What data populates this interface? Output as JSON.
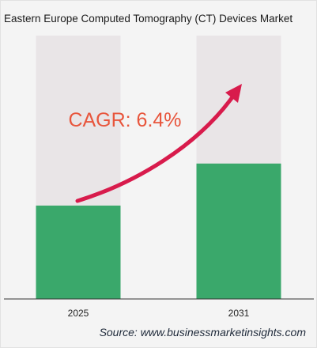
{
  "title": "Eastern Europe Computed Tomography (CT) Devices Market",
  "source": "Source: www.businessmarketinsights.com",
  "colors": {
    "bar": "#3aa86b",
    "bar_track": "#e9e5e7",
    "arrow": "#d81b4c",
    "cagr_text": "#e8553c",
    "axis": "#333333"
  },
  "chart_data": {
    "type": "bar",
    "categories": [
      "2025",
      "2031"
    ],
    "values": [
      1.0,
      1.45
    ],
    "annotations": [
      {
        "text": "CAGR: 6.4%",
        "kind": "growth-arrow"
      }
    ],
    "title": "Eastern Europe Computed Tomography (CT) Devices Market",
    "xlabel": "",
    "ylabel": "",
    "ylim": [
      0,
      2.82
    ],
    "grid": false,
    "legend": "none"
  }
}
